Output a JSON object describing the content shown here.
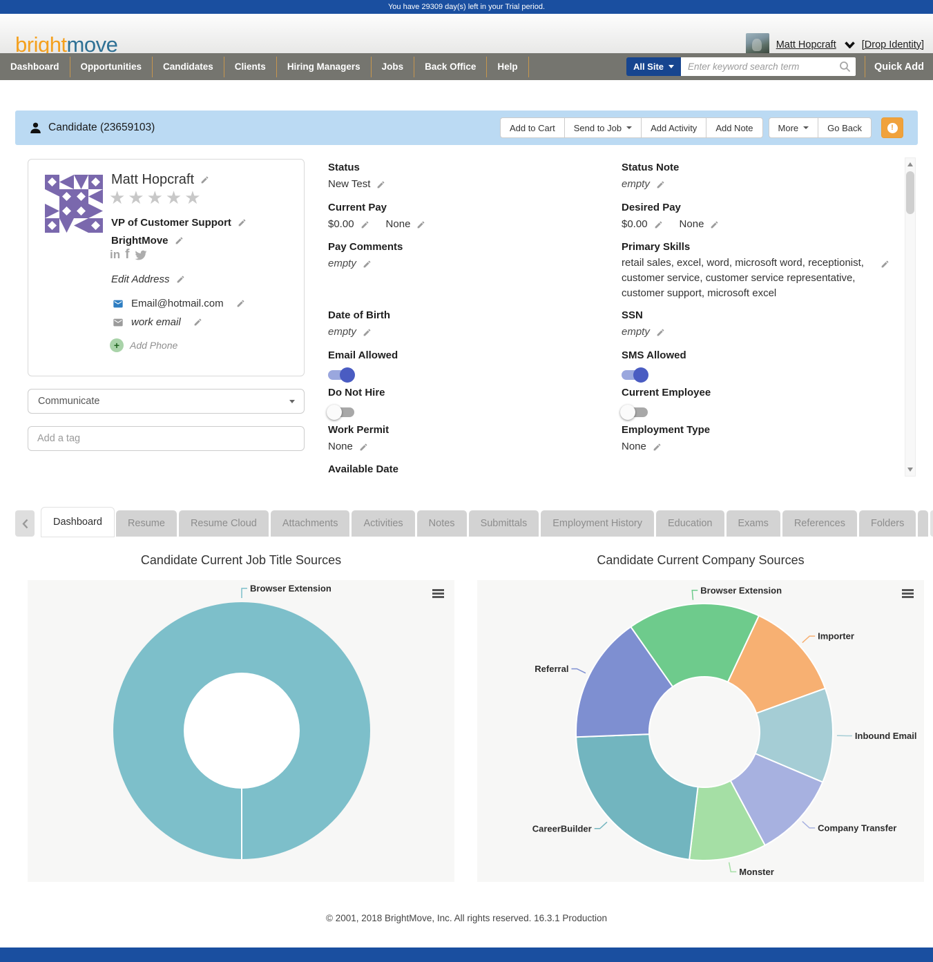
{
  "trial_bar": {
    "message": "You have 29309 day(s) left in your Trial period."
  },
  "header": {
    "logo": {
      "part1": "bright",
      "part2": "move"
    },
    "user_menu": {
      "name": "Matt Hopcraft",
      "drop_identity": "[Drop Identity]"
    }
  },
  "nav": {
    "items": [
      "Dashboard",
      "Opportunities",
      "Candidates",
      "Clients",
      "Hiring Managers",
      "Jobs",
      "Back Office",
      "Help"
    ],
    "search": {
      "scope": "All Site",
      "placeholder": "Enter keyword search term"
    },
    "quick_add": "Quick Add"
  },
  "candidate_header": {
    "title": "Candidate (23659103)",
    "actions": [
      "Add to Cart",
      "Send to Job",
      "Add Activity",
      "Add Note"
    ],
    "actions_secondary": [
      "More",
      "Go Back"
    ]
  },
  "profile": {
    "name": "Matt Hopcraft",
    "rating_stars": "★★★★★",
    "job_title": "VP of Customer Support",
    "company": "BrightMove",
    "edit_address": "Edit Address",
    "primary_email": "Email@hotmail.com",
    "work_email": "work email",
    "add_phone": "Add Phone",
    "communicate": "Communicate",
    "tag_placeholder": "Add a tag"
  },
  "details": {
    "mid": [
      {
        "label": "Status",
        "value": "New Test"
      },
      {
        "label": "Current Pay",
        "value": "$0.00",
        "value2": "None"
      },
      {
        "label": "Pay Comments",
        "value": "empty"
      },
      {
        "label": "Date of Birth",
        "value": "empty"
      },
      {
        "label": "Email Allowed",
        "toggle": "on"
      },
      {
        "label": "Do Not Hire",
        "toggle": "off"
      },
      {
        "label": "Work Permit",
        "value": "None"
      },
      {
        "label": "Available Date"
      }
    ],
    "right": [
      {
        "label": "Status Note",
        "value": "empty"
      },
      {
        "label": "Desired Pay",
        "value": "$0.00",
        "value2": "None"
      },
      {
        "label": "Primary Skills",
        "value": "retail sales, excel, word, microsoft word, receptionist, customer service, customer service representative, customer support, microsoft excel"
      },
      {
        "label": "SSN",
        "value": "empty"
      },
      {
        "label": "SMS Allowed",
        "toggle": "on"
      },
      {
        "label": "Current Employee",
        "toggle": "off"
      },
      {
        "label": "Employment Type",
        "value": "None"
      }
    ]
  },
  "tabs": [
    "Dashboard",
    "Resume",
    "Resume Cloud",
    "Attachments",
    "Activities",
    "Notes",
    "Submittals",
    "Employment History",
    "Education",
    "Exams",
    "References",
    "Folders"
  ],
  "active_tab": "Dashboard",
  "chart_data": [
    {
      "type": "pie",
      "subtype": "donut",
      "title": "Candidate Current Job Title Sources",
      "legend": "none",
      "data_labels": "name-only",
      "value_unit": "percent-estimated",
      "start_angle_deg": 180,
      "series": [
        {
          "name": "Browser Extension",
          "value": 100,
          "color": "#7dbfca"
        }
      ]
    },
    {
      "type": "pie",
      "subtype": "donut",
      "title": "Candidate Current Company Sources",
      "legend": "none",
      "data_labels": "name-only",
      "value_unit": "percent-estimated",
      "start_angle_deg": -35,
      "series": [
        {
          "name": "Browser Extension",
          "value": 16.7,
          "color": "#6ecb8c"
        },
        {
          "name": "Importer",
          "value": 12.5,
          "color": "#f7b072"
        },
        {
          "name": "Inbound Email",
          "value": 11.9,
          "color": "#a5cdd5"
        },
        {
          "name": "Company Transfer",
          "value": 10.8,
          "color": "#a7b1e0"
        },
        {
          "name": "Monster",
          "value": 9.7,
          "color": "#a5dfa5"
        },
        {
          "name": "CareerBuilder",
          "value": 22.5,
          "color": "#72b5bf"
        },
        {
          "name": "Referral",
          "value": 15.9,
          "color": "#7e8fd1"
        }
      ]
    }
  ],
  "footer": {
    "text": "© 2001, 2018 BrightMove, Inc. All rights reserved. 16.3.1 Production"
  },
  "icons": {
    "search": "magnifier",
    "edit": "pencil",
    "candidate": "person-silhouette",
    "alert": "exclamation-circle",
    "chart_menu": "hamburger",
    "email": "envelope",
    "add": "plus-circle"
  },
  "colors": {
    "accent_blue": "#1a4fa0",
    "nav_gray": "#75756f",
    "nav_separator": "#c6964e",
    "candidate_bar_blue": "#bbdaf3",
    "alert_button_orange": "#f0a23c",
    "toggle_on_knob": "#4a5cc2",
    "toggle_on_track": "#9aa7de",
    "donut_single_teal": "#7dbfca"
  }
}
